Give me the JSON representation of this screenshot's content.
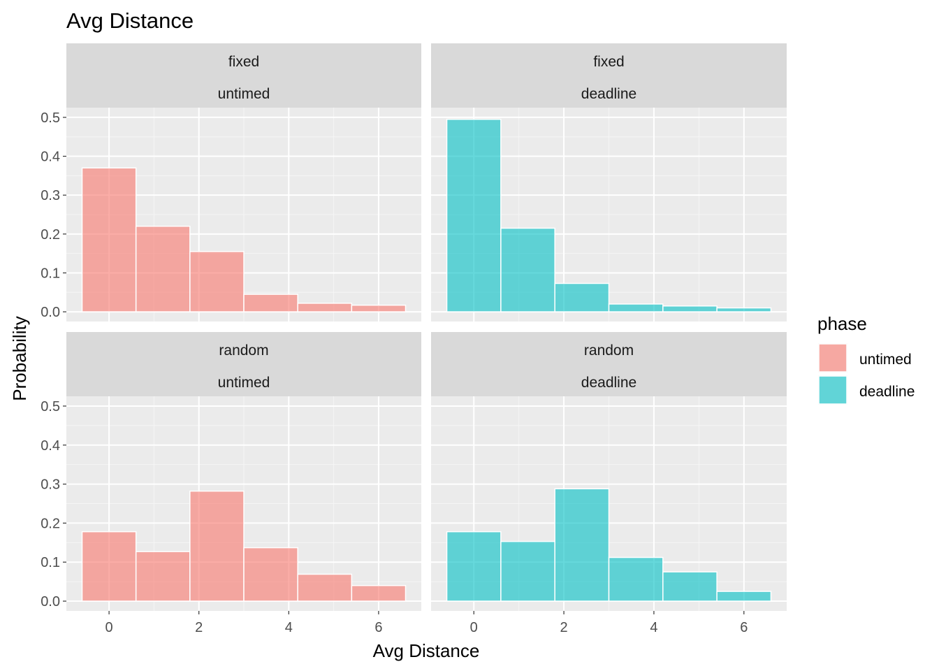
{
  "chart_data": {
    "type": "bar",
    "title": "Avg Distance",
    "xlabel": "Avg Distance",
    "ylabel": "Probability",
    "xlim": [
      -0.95,
      6.95
    ],
    "ylim": [
      -0.025,
      0.525
    ],
    "x_ticks": [
      0,
      2,
      4,
      6
    ],
    "y_ticks": [
      0.0,
      0.1,
      0.2,
      0.3,
      0.4,
      0.5
    ],
    "y_tick_labels": [
      "0.0",
      "0.1",
      "0.2",
      "0.3",
      "0.4",
      "0.5"
    ],
    "bin_edges": [
      -0.6,
      0.6,
      1.8,
      3.0,
      4.2,
      5.4,
      6.6
    ],
    "grid": true,
    "legend": {
      "title": "phase",
      "position": "right",
      "entries": [
        {
          "label": "untimed",
          "color": "#F8766D"
        },
        {
          "label": "deadline",
          "color": "#00BFC4"
        }
      ]
    },
    "panels": [
      {
        "strip": [
          "fixed",
          "untimed"
        ],
        "phase": "untimed",
        "values": [
          0.37,
          0.22,
          0.155,
          0.045,
          0.022,
          0.017
        ]
      },
      {
        "strip": [
          "fixed",
          "deadline"
        ],
        "phase": "deadline",
        "values": [
          0.495,
          0.215,
          0.073,
          0.02,
          0.015,
          0.01
        ]
      },
      {
        "strip": [
          "random",
          "untimed"
        ],
        "phase": "untimed",
        "values": [
          0.178,
          0.127,
          0.282,
          0.137,
          0.069,
          0.04
        ]
      },
      {
        "strip": [
          "random",
          "deadline"
        ],
        "phase": "deadline",
        "values": [
          0.178,
          0.153,
          0.288,
          0.112,
          0.075,
          0.025
        ]
      }
    ]
  }
}
